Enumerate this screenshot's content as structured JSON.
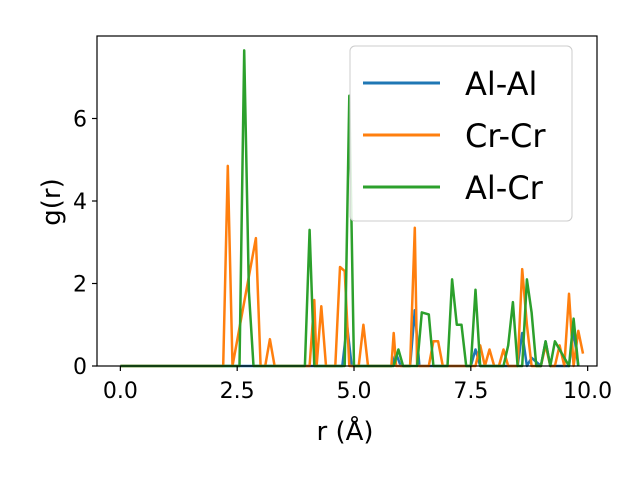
{
  "chart_data": {
    "type": "line",
    "xlabel": "r (Å)",
    "ylabel": "g(r)",
    "xlim": [
      -0.5,
      10.2
    ],
    "ylim": [
      0,
      8.0
    ],
    "xticks": [
      0.0,
      2.5,
      5.0,
      7.5,
      10.0
    ],
    "xtick_labels": [
      "0.0",
      "2.5",
      "5.0",
      "7.5",
      "10.0"
    ],
    "yticks": [
      0,
      2,
      4,
      6
    ],
    "ytick_labels": [
      "0",
      "2",
      "4",
      "6"
    ],
    "grid": false,
    "legend_position": "top-right",
    "series": [
      {
        "name": "Al-Al",
        "color": "#1f77b4",
        "x": [
          0.0,
          4.65,
          4.75,
          4.85,
          4.95,
          5.05,
          5.8,
          5.9,
          6.0,
          6.1,
          6.2,
          6.3,
          6.4,
          6.5,
          6.6,
          6.7,
          7.5,
          7.6,
          7.7,
          8.5,
          8.6,
          8.7,
          8.8,
          9.0,
          9.1,
          9.2,
          9.3,
          9.6,
          9.7,
          9.8
        ],
        "y": [
          0.0,
          0.0,
          0.0,
          1.0,
          0.0,
          0.0,
          0.0,
          0.3,
          0.0,
          0.0,
          0.0,
          1.35,
          0.0,
          0.0,
          0.0,
          0.0,
          0.0,
          0.4,
          0.0,
          0.0,
          0.8,
          0.0,
          0.2,
          0.0,
          0.6,
          0.0,
          0.0,
          0.0,
          0.85,
          0.0
        ]
      },
      {
        "name": "Cr-Cr",
        "color": "#ff7f0e",
        "x": [
          0.0,
          2.2,
          2.3,
          2.4,
          2.9,
          3.0,
          3.1,
          3.2,
          3.3,
          4.05,
          4.15,
          4.2,
          4.3,
          4.4,
          4.5,
          4.6,
          4.7,
          4.8,
          4.9,
          5.0,
          5.1,
          5.2,
          5.3,
          5.4,
          5.5,
          5.8,
          5.85,
          5.9,
          6.1,
          6.15,
          6.2,
          6.3,
          6.35,
          6.4,
          6.5,
          6.6,
          6.7,
          6.8,
          6.9,
          7.5,
          7.6,
          7.7,
          7.8,
          7.9,
          8.0,
          8.1,
          8.2,
          8.3,
          8.5,
          8.6,
          8.7,
          8.8,
          8.9,
          9.0,
          9.1,
          9.2,
          9.3,
          9.4,
          9.5,
          9.6,
          9.7,
          9.8,
          9.9
        ],
        "y": [
          0.0,
          0.0,
          4.85,
          0.0,
          3.1,
          0.0,
          0.0,
          0.65,
          0.0,
          0.0,
          1.6,
          0.0,
          1.45,
          0.0,
          0.0,
          0.0,
          2.4,
          2.3,
          0.0,
          0.0,
          0.0,
          1.0,
          0.0,
          0.0,
          0.0,
          0.0,
          0.8,
          0.0,
          0.0,
          0.0,
          0.0,
          3.35,
          0.0,
          0.0,
          0.0,
          0.0,
          0.6,
          0.6,
          0.0,
          0.0,
          0.0,
          0.5,
          0.0,
          0.4,
          0.0,
          0.0,
          0.4,
          0.0,
          0.0,
          2.35,
          1.0,
          0.0,
          0.0,
          0.0,
          0.5,
          0.0,
          0.0,
          0.5,
          0.0,
          1.75,
          0.0,
          0.85,
          0.3
        ]
      },
      {
        "name": "Al-Cr",
        "color": "#2ca02c",
        "x": [
          0.0,
          2.55,
          2.65,
          2.75,
          2.85,
          2.95,
          3.95,
          4.05,
          4.15,
          4.8,
          4.9,
          5.0,
          5.1,
          5.85,
          5.95,
          6.05,
          6.35,
          6.45,
          6.6,
          6.7,
          7.0,
          7.1,
          7.2,
          7.3,
          7.4,
          7.5,
          7.6,
          7.7,
          8.2,
          8.3,
          8.4,
          8.5,
          8.6,
          8.7,
          8.8,
          8.9,
          9.0,
          9.1,
          9.2,
          9.3,
          9.6,
          9.7,
          9.8
        ],
        "y": [
          0.0,
          0.0,
          7.65,
          1.8,
          0.0,
          0.0,
          0.0,
          3.3,
          0.0,
          0.0,
          6.55,
          0.0,
          0.0,
          0.0,
          0.4,
          0.0,
          0.0,
          1.3,
          1.25,
          0.0,
          0.0,
          2.1,
          1.0,
          1.0,
          0.0,
          0.0,
          1.85,
          0.0,
          0.0,
          0.5,
          1.55,
          0.0,
          0.0,
          2.1,
          1.3,
          0.0,
          0.0,
          0.6,
          0.0,
          0.6,
          0.0,
          1.15,
          0.0
        ]
      }
    ]
  }
}
